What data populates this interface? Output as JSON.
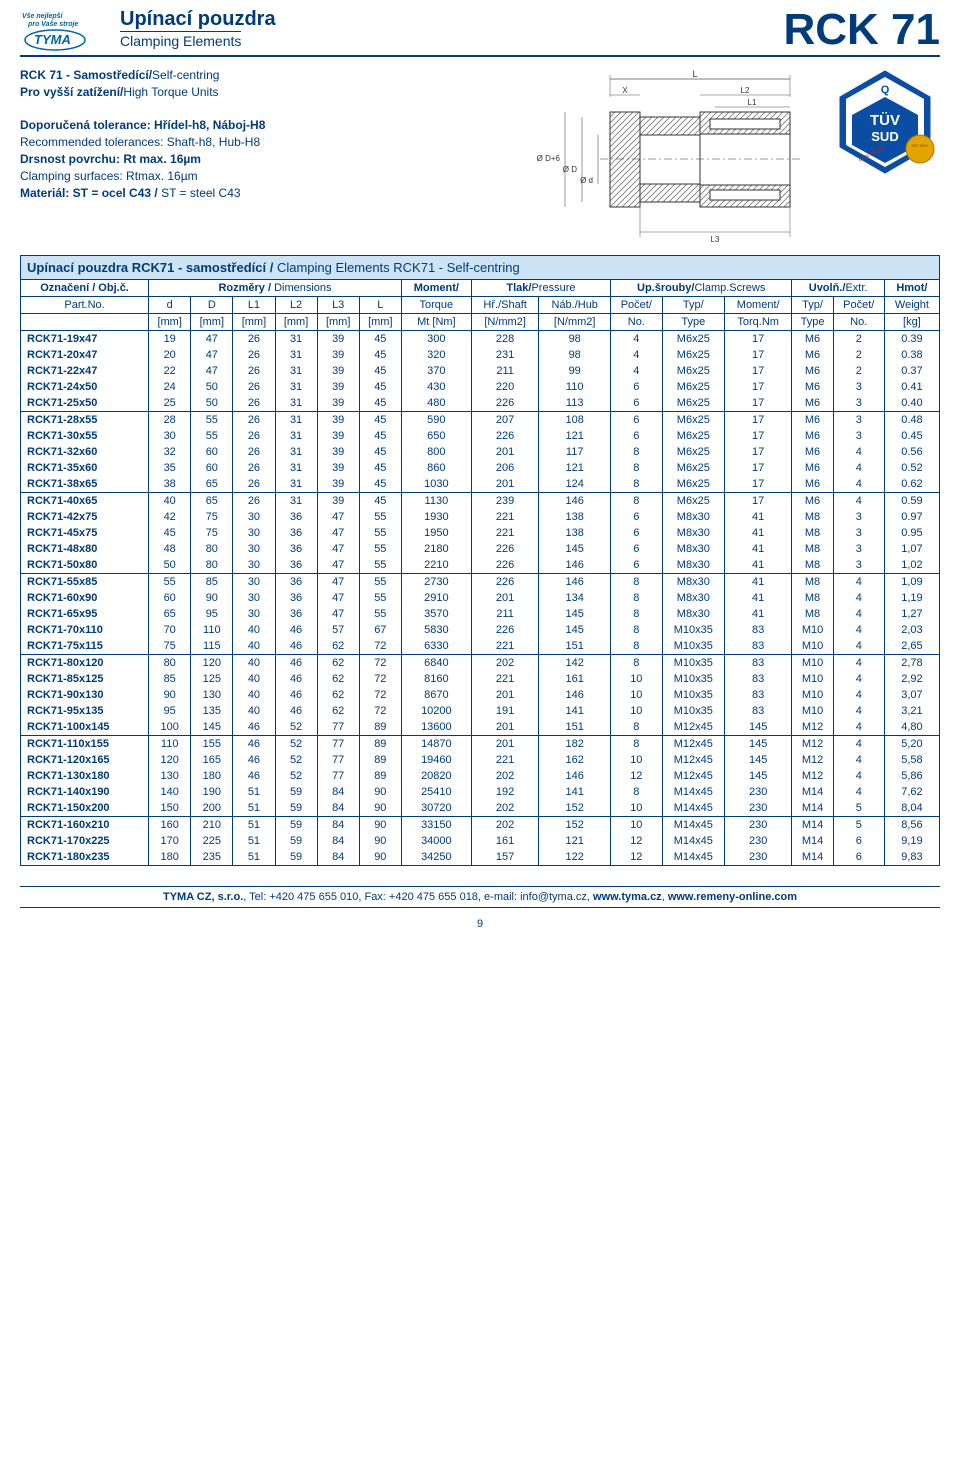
{
  "header": {
    "logo_text1": "Vše nejlepší",
    "logo_text2": "pro Vaše stroje",
    "logo_brand": "TYMA",
    "title_main": "Upínací pouzdra",
    "title_sub": "Clamping Elements",
    "title_code": "RCK 71"
  },
  "intro": {
    "line1b": "RCK 71 - Samostředící/",
    "line1r": "Self-centring",
    "line2b": "Pro vyšší zatížení/",
    "line2r": "High Torque Units",
    "line3b": "Doporučená tolerance: Hřídel-h8, Náboj-H8",
    "line4r": "Recommended tolerances: Shaft-h8, Hub-H8",
    "line5b": "Drsnost povrchu: Rt max. 16µm",
    "line6r": "Clamping surfaces: Rtmax. 16µm",
    "line7b": "Materiál: ST = ocel C43 / ",
    "line7r": "ST = steel C43"
  },
  "section_title_b": "Upínací pouzdra RCK71 - samostředící / ",
  "section_title_r": "Clamping Elements RCK71 - Self-centring",
  "colhead": {
    "r1": [
      "Označení / Obj.č.",
      "Rozměry / Dimensions",
      "Moment/",
      "Tlak/Pressure",
      "Up.šrouby/Clamp.Screws",
      "Uvolň./Extr.",
      "Hmot/"
    ],
    "r2": [
      "Part.No.",
      "d",
      "D",
      "L1",
      "L2",
      "L3",
      "L",
      "Torque",
      "Hř./Shaft",
      "Náb./Hub",
      "Počet/",
      "Typ/",
      "Moment/",
      "Typ/",
      "Počet/",
      "Weight"
    ],
    "r3": [
      "",
      "[mm]",
      "[mm]",
      "[mm]",
      "[mm]",
      "[mm]",
      "[mm]",
      "Mt [Nm]",
      "[N/mm2]",
      "[N/mm2]",
      "No.",
      "Type",
      "Torq.Nm",
      "Type",
      "No.",
      "[kg]"
    ]
  },
  "rows": [
    {
      "sep": true,
      "c": [
        "RCK71-19x47",
        "19",
        "47",
        "26",
        "31",
        "39",
        "45",
        "300",
        "228",
        "98",
        "4",
        "M6x25",
        "17",
        "M6",
        "2",
        "0.39"
      ]
    },
    {
      "c": [
        "RCK71-20x47",
        "20",
        "47",
        "26",
        "31",
        "39",
        "45",
        "320",
        "231",
        "98",
        "4",
        "M6x25",
        "17",
        "M6",
        "2",
        "0.38"
      ]
    },
    {
      "c": [
        "RCK71-22x47",
        "22",
        "47",
        "26",
        "31",
        "39",
        "45",
        "370",
        "211",
        "99",
        "4",
        "M6x25",
        "17",
        "M6",
        "2",
        "0.37"
      ]
    },
    {
      "c": [
        "RCK71-24x50",
        "24",
        "50",
        "26",
        "31",
        "39",
        "45",
        "430",
        "220",
        "110",
        "6",
        "M6x25",
        "17",
        "M6",
        "3",
        "0.41"
      ]
    },
    {
      "c": [
        "RCK71-25x50",
        "25",
        "50",
        "26",
        "31",
        "39",
        "45",
        "480",
        "226",
        "113",
        "6",
        "M6x25",
        "17",
        "M6",
        "3",
        "0.40"
      ]
    },
    {
      "sep": true,
      "c": [
        "RCK71-28x55",
        "28",
        "55",
        "26",
        "31",
        "39",
        "45",
        "590",
        "207",
        "108",
        "6",
        "M6x25",
        "17",
        "M6",
        "3",
        "0.48"
      ]
    },
    {
      "c": [
        "RCK71-30x55",
        "30",
        "55",
        "26",
        "31",
        "39",
        "45",
        "650",
        "226",
        "121",
        "6",
        "M6x25",
        "17",
        "M6",
        "3",
        "0.45"
      ]
    },
    {
      "c": [
        "RCK71-32x60",
        "32",
        "60",
        "26",
        "31",
        "39",
        "45",
        "800",
        "201",
        "117",
        "8",
        "M6x25",
        "17",
        "M6",
        "4",
        "0.56"
      ]
    },
    {
      "c": [
        "RCK71-35x60",
        "35",
        "60",
        "26",
        "31",
        "39",
        "45",
        "860",
        "206",
        "121",
        "8",
        "M6x25",
        "17",
        "M6",
        "4",
        "0.52"
      ]
    },
    {
      "c": [
        "RCK71-38x65",
        "38",
        "65",
        "26",
        "31",
        "39",
        "45",
        "1030",
        "201",
        "124",
        "8",
        "M6x25",
        "17",
        "M6",
        "4",
        "0.62"
      ]
    },
    {
      "sep": true,
      "c": [
        "RCK71-40x65",
        "40",
        "65",
        "26",
        "31",
        "39",
        "45",
        "1130",
        "239",
        "146",
        "8",
        "M6x25",
        "17",
        "M6",
        "4",
        "0.59"
      ]
    },
    {
      "c": [
        "RCK71-42x75",
        "42",
        "75",
        "30",
        "36",
        "47",
        "55",
        "1930",
        "221",
        "138",
        "6",
        "M8x30",
        "41",
        "M8",
        "3",
        "0.97"
      ]
    },
    {
      "c": [
        "RCK71-45x75",
        "45",
        "75",
        "30",
        "36",
        "47",
        "55",
        "1950",
        "221",
        "138",
        "6",
        "M8x30",
        "41",
        "M8",
        "3",
        "0.95"
      ]
    },
    {
      "c": [
        "RCK71-48x80",
        "48",
        "80",
        "30",
        "36",
        "47",
        "55",
        "2180",
        "226",
        "145",
        "6",
        "M8x30",
        "41",
        "M8",
        "3",
        "1,07"
      ]
    },
    {
      "c": [
        "RCK71-50x80",
        "50",
        "80",
        "30",
        "36",
        "47",
        "55",
        "2210",
        "226",
        "146",
        "6",
        "M8x30",
        "41",
        "M8",
        "3",
        "1,02"
      ]
    },
    {
      "sep": true,
      "c": [
        "RCK71-55x85",
        "55",
        "85",
        "30",
        "36",
        "47",
        "55",
        "2730",
        "226",
        "146",
        "8",
        "M8x30",
        "41",
        "M8",
        "4",
        "1,09"
      ]
    },
    {
      "c": [
        "RCK71-60x90",
        "60",
        "90",
        "30",
        "36",
        "47",
        "55",
        "2910",
        "201",
        "134",
        "8",
        "M8x30",
        "41",
        "M8",
        "4",
        "1,19"
      ]
    },
    {
      "c": [
        "RCK71-65x95",
        "65",
        "95",
        "30",
        "36",
        "47",
        "55",
        "3570",
        "211",
        "145",
        "8",
        "M8x30",
        "41",
        "M8",
        "4",
        "1,27"
      ]
    },
    {
      "c": [
        "RCK71-70x110",
        "70",
        "110",
        "40",
        "46",
        "57",
        "67",
        "5830",
        "226",
        "145",
        "8",
        "M10x35",
        "83",
        "M10",
        "4",
        "2,03"
      ]
    },
    {
      "c": [
        "RCK71-75x115",
        "75",
        "115",
        "40",
        "46",
        "62",
        "72",
        "6330",
        "221",
        "151",
        "8",
        "M10x35",
        "83",
        "M10",
        "4",
        "2,65"
      ]
    },
    {
      "sep": true,
      "c": [
        "RCK71-80x120",
        "80",
        "120",
        "40",
        "46",
        "62",
        "72",
        "6840",
        "202",
        "142",
        "8",
        "M10x35",
        "83",
        "M10",
        "4",
        "2,78"
      ]
    },
    {
      "c": [
        "RCK71-85x125",
        "85",
        "125",
        "40",
        "46",
        "62",
        "72",
        "8160",
        "221",
        "161",
        "10",
        "M10x35",
        "83",
        "M10",
        "4",
        "2,92"
      ]
    },
    {
      "c": [
        "RCK71-90x130",
        "90",
        "130",
        "40",
        "46",
        "62",
        "72",
        "8670",
        "201",
        "146",
        "10",
        "M10x35",
        "83",
        "M10",
        "4",
        "3,07"
      ]
    },
    {
      "c": [
        "RCK71-95x135",
        "95",
        "135",
        "40",
        "46",
        "62",
        "72",
        "10200",
        "191",
        "141",
        "10",
        "M10x35",
        "83",
        "M10",
        "4",
        "3,21"
      ]
    },
    {
      "c": [
        "RCK71-100x145",
        "100",
        "145",
        "46",
        "52",
        "77",
        "89",
        "13600",
        "201",
        "151",
        "8",
        "M12x45",
        "145",
        "M12",
        "4",
        "4,80"
      ]
    },
    {
      "sep": true,
      "c": [
        "RCK71-110x155",
        "110",
        "155",
        "46",
        "52",
        "77",
        "89",
        "14870",
        "201",
        "182",
        "8",
        "M12x45",
        "145",
        "M12",
        "4",
        "5,20"
      ]
    },
    {
      "c": [
        "RCK71-120x165",
        "120",
        "165",
        "46",
        "52",
        "77",
        "89",
        "19460",
        "221",
        "162",
        "10",
        "M12x45",
        "145",
        "M12",
        "4",
        "5,58"
      ]
    },
    {
      "c": [
        "RCK71-130x180",
        "130",
        "180",
        "46",
        "52",
        "77",
        "89",
        "20820",
        "202",
        "146",
        "12",
        "M12x45",
        "145",
        "M12",
        "4",
        "5,86"
      ]
    },
    {
      "c": [
        "RCK71-140x190",
        "140",
        "190",
        "51",
        "59",
        "84",
        "90",
        "25410",
        "192",
        "141",
        "8",
        "M14x45",
        "230",
        "M14",
        "4",
        "7,62"
      ]
    },
    {
      "c": [
        "RCK71-150x200",
        "150",
        "200",
        "51",
        "59",
        "84",
        "90",
        "30720",
        "202",
        "152",
        "10",
        "M14x45",
        "230",
        "M14",
        "5",
        "8,04"
      ]
    },
    {
      "sep": true,
      "c": [
        "RCK71-160x210",
        "160",
        "210",
        "51",
        "59",
        "84",
        "90",
        "33150",
        "202",
        "152",
        "10",
        "M14x45",
        "230",
        "M14",
        "5",
        "8,56"
      ]
    },
    {
      "c": [
        "RCK71-170x225",
        "170",
        "225",
        "51",
        "59",
        "84",
        "90",
        "34000",
        "161",
        "121",
        "12",
        "M14x45",
        "230",
        "M14",
        "6",
        "9,19"
      ]
    },
    {
      "c": [
        "RCK71-180x235",
        "180",
        "235",
        "51",
        "59",
        "84",
        "90",
        "34250",
        "157",
        "122",
        "12",
        "M14x45",
        "230",
        "M14",
        "6",
        "9,83"
      ]
    }
  ],
  "footer": "TYMA CZ, s.r.o., Tel: +420 475 655 010, Fax: +420 475 655 018, e-mail: info@tyma.cz, www.tyma.cz, www.remeny-online.com",
  "pagenum": "9",
  "colors": {
    "primary": "#003b7a",
    "headerbg": "#cde4f7"
  }
}
